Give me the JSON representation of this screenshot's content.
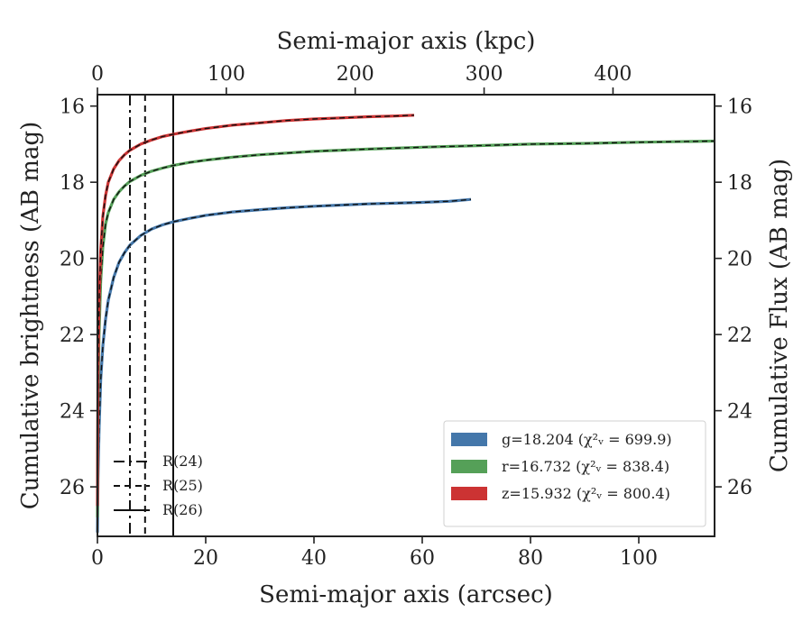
{
  "chart_data": {
    "type": "line",
    "xlabel": "Semi-major axis (arcsec)",
    "x2label": "Semi-major axis (kpc)",
    "ylabel": "Cumulative brightness (AB mag)",
    "y2label": "Cumulative Flux (AB mag)",
    "xlim": [
      0,
      114
    ],
    "ylim": [
      27.3,
      15.7
    ],
    "x2_scale_kpc_per_arcsec": 4.2,
    "x_ticks": [
      0,
      20,
      40,
      60,
      80,
      100
    ],
    "x2_ticks": [
      0,
      100,
      200,
      300,
      400
    ],
    "y_ticks": [
      16,
      18,
      20,
      22,
      24,
      26
    ],
    "grid": false,
    "series": [
      {
        "name": "g=18.204 ($\\chi^2_\\nu = 699.9$)",
        "legend_label": "g=18.204 (χ²ᵥ = 699.9)",
        "color": "#4477aa",
        "x": [
          0,
          0.1,
          0.3,
          0.6,
          1,
          1.5,
          2,
          3,
          4,
          5,
          6,
          8,
          10,
          12,
          14,
          17,
          20,
          25,
          30,
          35,
          40,
          45,
          50,
          55,
          60,
          65,
          69
        ],
        "y": [
          27.2,
          25.8,
          24.5,
          23.2,
          22.3,
          21.6,
          21.1,
          20.5,
          20.1,
          19.85,
          19.65,
          19.4,
          19.23,
          19.12,
          19.04,
          18.95,
          18.87,
          18.78,
          18.72,
          18.67,
          18.63,
          18.6,
          18.57,
          18.55,
          18.53,
          18.5,
          18.45
        ]
      },
      {
        "name": "r=16.732 ($\\chi^2_\\nu = 838.4$)",
        "legend_label": "r=16.732 (χ²ᵥ = 838.4)",
        "color": "#55a058",
        "x": [
          0,
          0.1,
          0.3,
          0.6,
          1,
          1.5,
          2,
          3,
          4,
          5,
          6,
          8,
          10,
          12,
          14,
          17,
          20,
          25,
          30,
          40,
          50,
          60,
          70,
          80,
          90,
          100,
          114
        ],
        "y": [
          26.8,
          23.8,
          22.0,
          20.6,
          19.7,
          19.1,
          18.8,
          18.45,
          18.25,
          18.1,
          17.98,
          17.82,
          17.71,
          17.63,
          17.56,
          17.48,
          17.42,
          17.34,
          17.28,
          17.19,
          17.13,
          17.08,
          17.04,
          17.0,
          16.98,
          16.95,
          16.92
        ]
      },
      {
        "name": "z=15.932 ($\\chi^2_\\nu = 800.4$)",
        "legend_label": "z=15.932 (χ²ᵥ = 800.4)",
        "color": "#cc3333",
        "x": [
          0,
          0.1,
          0.3,
          0.6,
          1,
          1.5,
          2,
          3,
          4,
          5,
          6,
          8,
          10,
          12,
          14,
          17,
          20,
          25,
          30,
          35,
          40,
          45,
          50,
          55,
          58.5
        ],
        "y": [
          26.5,
          23.0,
          21.2,
          19.8,
          18.9,
          18.35,
          18.0,
          17.65,
          17.43,
          17.28,
          17.16,
          17.0,
          16.89,
          16.8,
          16.74,
          16.66,
          16.59,
          16.5,
          16.44,
          16.38,
          16.34,
          16.31,
          16.28,
          16.26,
          16.24
        ]
      }
    ],
    "vlines": [
      {
        "label": "R(24)",
        "x": 6.0,
        "style": "dashdot"
      },
      {
        "label": "R(25)",
        "x": 8.8,
        "style": "dashed"
      },
      {
        "label": "R(26)",
        "x": 14.0,
        "style": "solid"
      }
    ],
    "legend_placement": "lower-right",
    "vline_legend_placement": "lower-left"
  }
}
